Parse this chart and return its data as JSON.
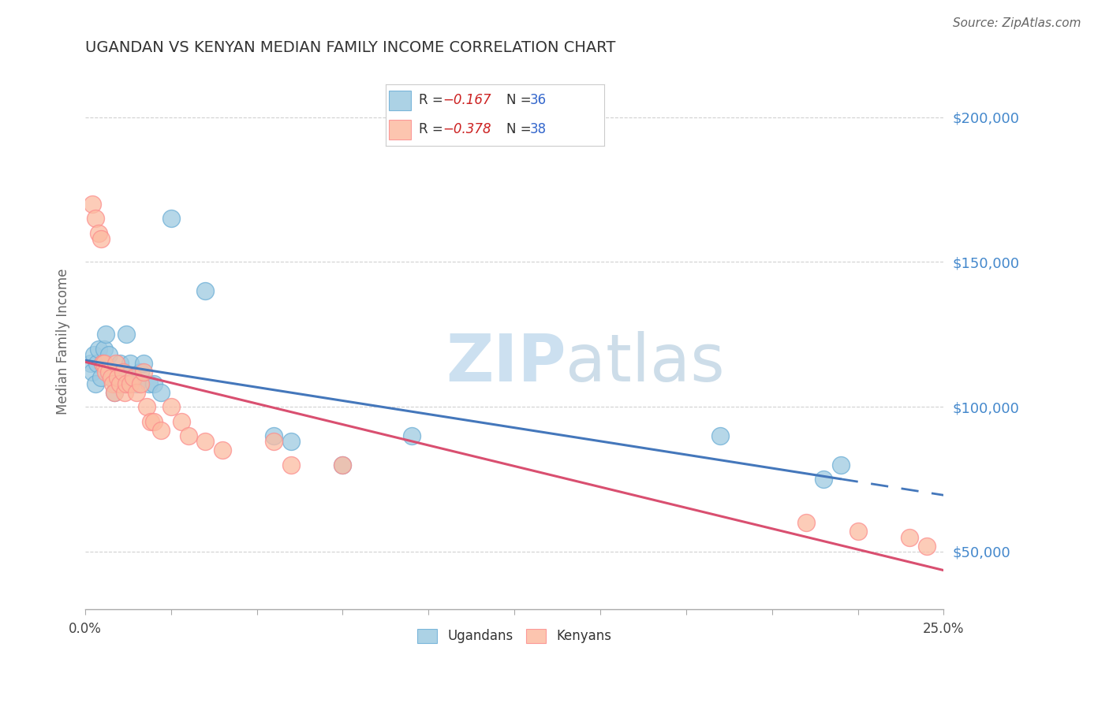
{
  "title": "UGANDAN VS KENYAN MEDIAN FAMILY INCOME CORRELATION CHART",
  "source": "Source: ZipAtlas.com",
  "ylabel": "Median Family Income",
  "xlim": [
    0.0,
    25.0
  ],
  "ylim": [
    30000,
    215000
  ],
  "yticks": [
    50000,
    100000,
    150000,
    200000
  ],
  "ytick_labels": [
    "$50,000",
    "$100,000",
    "$150,000",
    "$200,000"
  ],
  "xticks": [
    0.0,
    2.5,
    5.0,
    7.5,
    10.0,
    12.5,
    15.0,
    17.5,
    20.0,
    22.5,
    25.0
  ],
  "xtick_labels": [
    "0.0%",
    "",
    "",
    "",
    "",
    "",
    "",
    "",
    "",
    "",
    "25.0%"
  ],
  "legend_r_blue": "-0.167",
  "legend_n_blue": "36",
  "legend_r_pink": "-0.378",
  "legend_n_pink": "38",
  "legend_label_blue": "Ugandans",
  "legend_label_pink": "Kenyans",
  "ugandan_color": "#9ecae1",
  "ugandan_edge": "#6baed6",
  "kenyan_color": "#fcbba1",
  "kenyan_edge": "#fc8d8d",
  "regression_blue_color": "#4477bb",
  "regression_pink_color": "#d94f70",
  "watermark_color": "#cce0f0",
  "r_value_color": "#cc2222",
  "n_value_color": "#3366cc",
  "ytick_color": "#4488cc",
  "title_color": "#333333",
  "ylabel_color": "#666666",
  "source_color": "#666666",
  "ugandan_x": [
    0.15,
    0.2,
    0.25,
    0.3,
    0.35,
    0.4,
    0.45,
    0.5,
    0.55,
    0.6,
    0.7,
    0.8,
    0.85,
    0.9,
    1.0,
    1.05,
    1.1,
    1.15,
    1.2,
    1.3,
    1.4,
    1.5,
    1.6,
    1.7,
    1.85,
    2.0,
    2.2,
    2.5,
    3.5,
    5.5,
    6.0,
    7.5,
    9.5,
    18.5,
    21.5,
    22.0
  ],
  "ugandan_y": [
    115000,
    112000,
    118000,
    108000,
    115000,
    120000,
    110000,
    115000,
    120000,
    125000,
    118000,
    112000,
    105000,
    108000,
    115000,
    110000,
    112000,
    108000,
    125000,
    115000,
    110000,
    108000,
    112000,
    115000,
    108000,
    108000,
    105000,
    165000,
    140000,
    90000,
    88000,
    80000,
    90000,
    90000,
    75000,
    80000
  ],
  "kenyan_x": [
    0.2,
    0.3,
    0.4,
    0.45,
    0.5,
    0.55,
    0.6,
    0.7,
    0.75,
    0.8,
    0.85,
    0.9,
    0.95,
    1.0,
    1.1,
    1.15,
    1.2,
    1.3,
    1.4,
    1.5,
    1.6,
    1.7,
    1.8,
    1.9,
    2.0,
    2.2,
    2.5,
    2.8,
    3.0,
    3.5,
    4.0,
    5.5,
    6.0,
    7.5,
    21.0,
    22.5,
    24.0,
    24.5
  ],
  "kenyan_y": [
    170000,
    165000,
    160000,
    158000,
    115000,
    115000,
    112000,
    112000,
    110000,
    108000,
    105000,
    115000,
    110000,
    108000,
    112000,
    105000,
    108000,
    108000,
    110000,
    105000,
    108000,
    112000,
    100000,
    95000,
    95000,
    92000,
    100000,
    95000,
    90000,
    88000,
    85000,
    88000,
    80000,
    80000,
    60000,
    57000,
    55000,
    52000
  ]
}
